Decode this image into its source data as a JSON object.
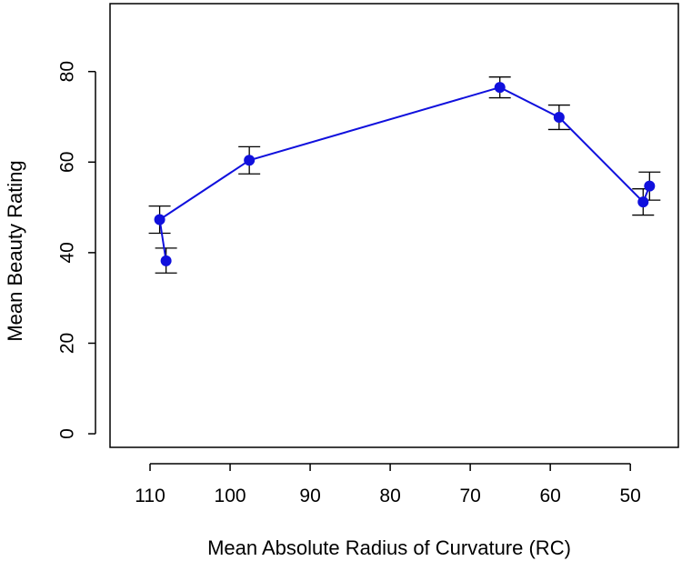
{
  "chart_data": {
    "type": "line",
    "title": "",
    "xlabel": "Mean Absolute Radius of Curvature (RC)",
    "ylabel": "Mean Beauty Rating",
    "xlim": [
      115,
      44
    ],
    "x_reversed": true,
    "ylim": [
      -3,
      95
    ],
    "x_ticks": [
      110,
      100,
      90,
      80,
      70,
      60,
      50
    ],
    "y_ticks": [
      0,
      20,
      40,
      60,
      80
    ],
    "grid": false,
    "legend": "none",
    "series": [
      {
        "color": "#1010dd",
        "points": [
          {
            "x": 108.0,
            "y": 38.2,
            "lo": 35.5,
            "hi": 41.0
          },
          {
            "x": 108.8,
            "y": 47.3,
            "lo": 44.3,
            "hi": 50.3
          },
          {
            "x": 97.6,
            "y": 60.4,
            "lo": 57.4,
            "hi": 63.4
          },
          {
            "x": 66.3,
            "y": 76.5,
            "lo": 74.2,
            "hi": 78.8
          },
          {
            "x": 58.9,
            "y": 69.9,
            "lo": 67.2,
            "hi": 72.6
          },
          {
            "x": 48.4,
            "y": 51.2,
            "lo": 48.3,
            "hi": 54.1
          },
          {
            "x": 47.6,
            "y": 54.7,
            "lo": 51.6,
            "hi": 57.8
          }
        ]
      }
    ]
  }
}
